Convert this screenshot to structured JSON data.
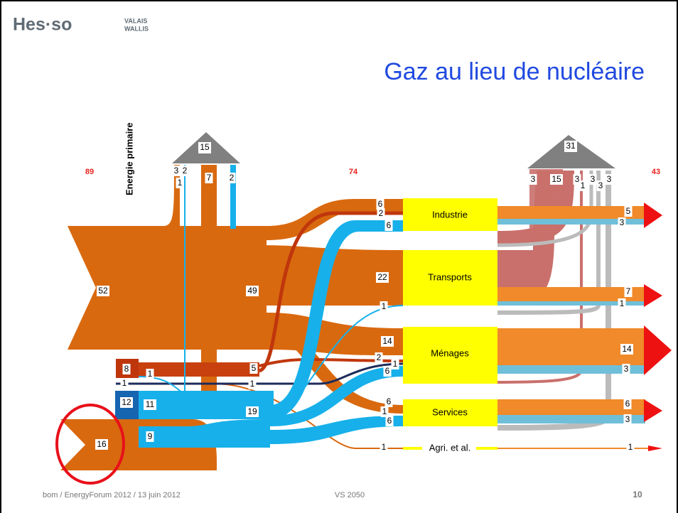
{
  "header": {
    "logo": "Hes·so",
    "logo_sub": [
      "VALAIS",
      "WALLIS"
    ]
  },
  "title": "Gaz au lieu de nucléaire",
  "axis_label": "Energie primaire",
  "totals": [
    89,
    74,
    43
  ],
  "losses": [
    15,
    31
  ],
  "sectors": [
    "Industrie",
    "Transports",
    "Ménages",
    "Services",
    "Agri. et al."
  ],
  "flow_labels": [
    52,
    49,
    8,
    1,
    1,
    1,
    5,
    12,
    11,
    19,
    9,
    16,
    3,
    2,
    1,
    7,
    2,
    6,
    2,
    6,
    22,
    1,
    14,
    2,
    1,
    6,
    6,
    1,
    6,
    1,
    3,
    15,
    3,
    1,
    3,
    3,
    3,
    5,
    3,
    7,
    1,
    14,
    3,
    6,
    3,
    1
  ],
  "footer": {
    "left": "bom / EnergyForum 2012 / 13 juin 2012",
    "center": "VS 2050",
    "page": 10
  }
}
